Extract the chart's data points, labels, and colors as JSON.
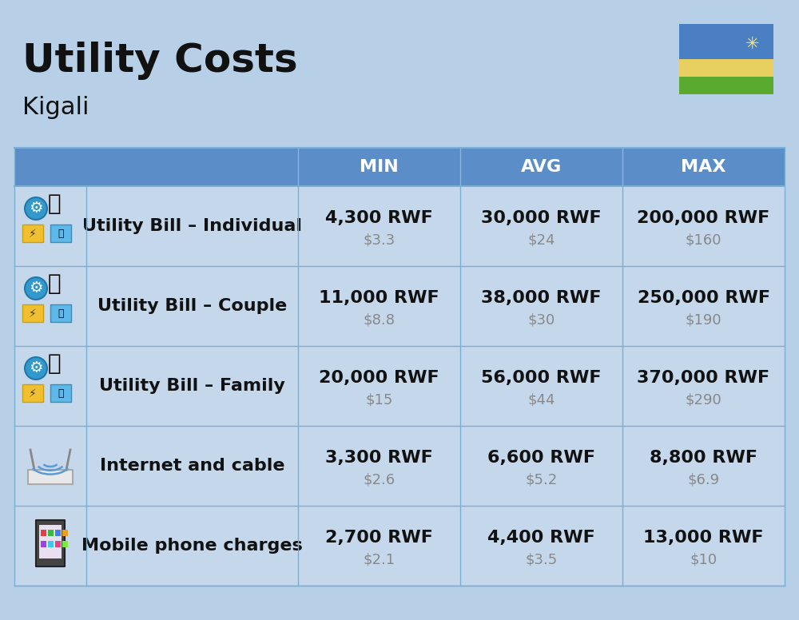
{
  "title": "Utility Costs",
  "subtitle": "Kigali",
  "background_color": "#b8cfe8",
  "header_color": "#5b8dc8",
  "header_text_color": "#ffffff",
  "row_bg": "#c5d8eb",
  "separator_color": "#7aafd4",
  "col_headers": [
    "MIN",
    "AVG",
    "MAX"
  ],
  "rows": [
    {
      "label": "Utility Bill – Individual",
      "min_rwf": "4,300 RWF",
      "min_usd": "$3.3",
      "avg_rwf": "30,000 RWF",
      "avg_usd": "$24",
      "max_rwf": "200,000 RWF",
      "max_usd": "$160"
    },
    {
      "label": "Utility Bill – Couple",
      "min_rwf": "11,000 RWF",
      "min_usd": "$8.8",
      "avg_rwf": "38,000 RWF",
      "avg_usd": "$30",
      "max_rwf": "250,000 RWF",
      "max_usd": "$190"
    },
    {
      "label": "Utility Bill – Family",
      "min_rwf": "20,000 RWF",
      "min_usd": "$15",
      "avg_rwf": "56,000 RWF",
      "avg_usd": "$44",
      "max_rwf": "370,000 RWF",
      "max_usd": "$290"
    },
    {
      "label": "Internet and cable",
      "min_rwf": "3,300 RWF",
      "min_usd": "$2.6",
      "avg_rwf": "6,600 RWF",
      "avg_usd": "$5.2",
      "max_rwf": "8,800 RWF",
      "max_usd": "$6.9"
    },
    {
      "label": "Mobile phone charges",
      "min_rwf": "2,700 RWF",
      "min_usd": "$2.1",
      "avg_rwf": "4,400 RWF",
      "avg_usd": "$3.5",
      "max_rwf": "13,000 RWF",
      "max_usd": "$10"
    }
  ],
  "flag_blue": "#4b7fc4",
  "flag_yellow": "#e8d060",
  "flag_green": "#5aaa30",
  "flag_sun": "#f5e878",
  "title_fontsize": 36,
  "subtitle_fontsize": 22,
  "header_fontsize": 16,
  "label_fontsize": 16,
  "value_fontsize": 16,
  "usd_fontsize": 13,
  "usd_color": "#888888",
  "label_bold": true
}
